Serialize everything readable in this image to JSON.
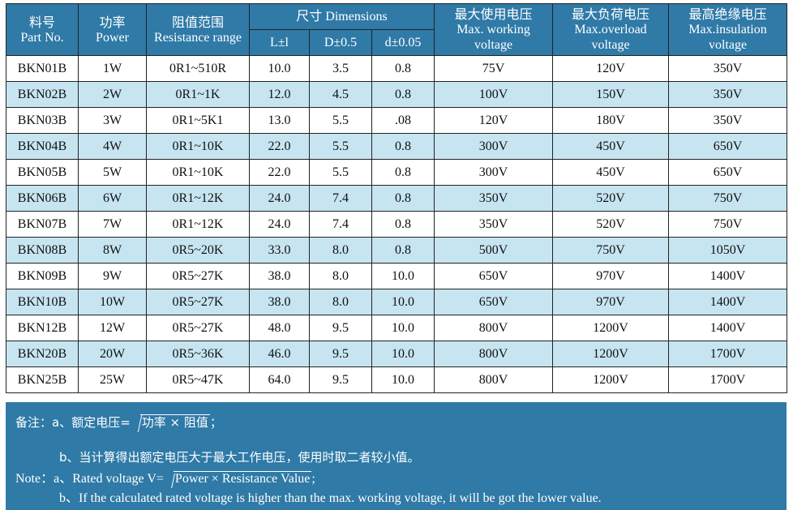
{
  "header": {
    "part_no": {
      "cn": "料号",
      "en": "Part No."
    },
    "power": {
      "cn": "功率",
      "en": "Power"
    },
    "resistance": {
      "cn": "阻值范围",
      "en": "Resistance range"
    },
    "dimensions": {
      "title": "尺寸 Dimensions",
      "L": "L±l",
      "D": "D±0.5",
      "d": "d±0.05"
    },
    "max_working": {
      "cn": "最大使用电压",
      "en1": "Max. working",
      "en2": "voltage"
    },
    "max_overload": {
      "cn": "最大负荷电压",
      "en1": "Max.overload",
      "en2": "voltage"
    },
    "max_insulation": {
      "cn": "最高绝缘电压",
      "en1": "Max.insulation",
      "en2": "voltage"
    }
  },
  "rows": [
    [
      "BKN01B",
      "1W",
      "0R1~510R",
      "10.0",
      "3.5",
      "0.8",
      "75V",
      "120V",
      "350V"
    ],
    [
      "BKN02B",
      "2W",
      "0R1~1K",
      "12.0",
      "4.5",
      "0.8",
      "100V",
      "150V",
      "350V"
    ],
    [
      "BKN03B",
      "3W",
      "0R1~5K1",
      "13.0",
      "5.5",
      ".08",
      "120V",
      "180V",
      "350V"
    ],
    [
      "BKN04B",
      "4W",
      "0R1~10K",
      "22.0",
      "5.5",
      "0.8",
      "300V",
      "450V",
      "650V"
    ],
    [
      "BKN05B",
      "5W",
      "0R1~10K",
      "22.0",
      "5.5",
      "0.8",
      "300V",
      "450V",
      "650V"
    ],
    [
      "BKN06B",
      "6W",
      "0R1~12K",
      "24.0",
      "7.4",
      "0.8",
      "350V",
      "520V",
      "750V"
    ],
    [
      "BKN07B",
      "7W",
      "0R1~12K",
      "24.0",
      "7.4",
      "0.8",
      "350V",
      "520V",
      "750V"
    ],
    [
      "BKN08B",
      "8W",
      "0R5~20K",
      "33.0",
      "8.0",
      "0.8",
      "500V",
      "750V",
      "1050V"
    ],
    [
      "BKN09B",
      "9W",
      "0R5~27K",
      "38.0",
      "8.0",
      "10.0",
      "650V",
      "970V",
      "1400V"
    ],
    [
      "BKN10B",
      "10W",
      "0R5~27K",
      "38.0",
      "8.0",
      "10.0",
      "650V",
      "970V",
      "1400V"
    ],
    [
      "BKN12B",
      "12W",
      "0R5~27K",
      "48.0",
      "9.5",
      "10.0",
      "800V",
      "1200V",
      "1400V"
    ],
    [
      "BKN20B",
      "20W",
      "0R5~36K",
      "46.0",
      "9.5",
      "10.0",
      "800V",
      "1200V",
      "1700V"
    ],
    [
      "BKN25B",
      "25W",
      "0R5~47K",
      "64.0",
      "9.5",
      "10.0",
      "800V",
      "1200V",
      "1700V"
    ]
  ],
  "notes": {
    "cn_a_prefix": "备注：a、额定电压=",
    "cn_a_formula": "功率 × 阻值",
    "cn_a_suffix": "；",
    "cn_b": "b、当计算得出额定电压大于最大工作电压，使用时取二者较小值。",
    "en_a_prefix": "Note：a、Rated voltage V=",
    "en_a_formula": "Power × Resistance Value",
    "en_a_suffix": ";",
    "en_b": "b、If the calculated rated voltage is higher than the max. working voltage, it will be got the lower value."
  },
  "colors": {
    "header_bg": "#2f7aa7",
    "alt_row_bg": "#c6e5f1"
  }
}
